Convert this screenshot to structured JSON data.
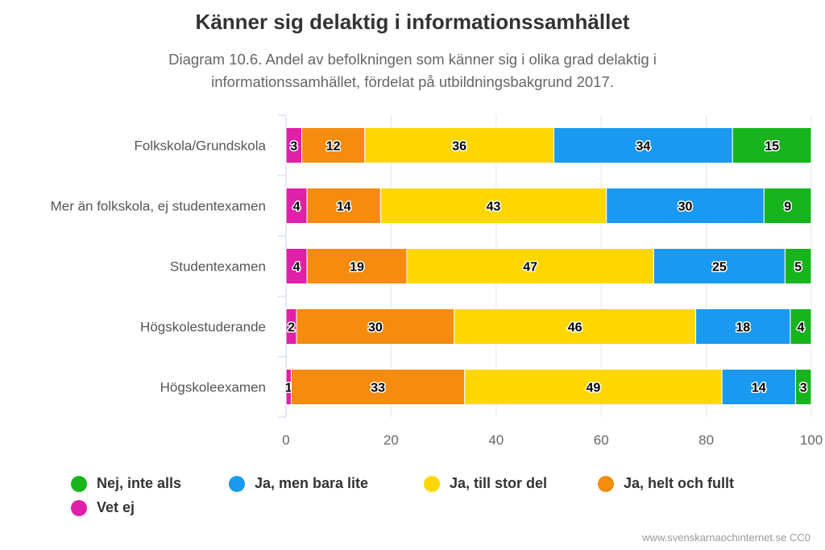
{
  "title": "Känner sig delaktig i informationssamhället",
  "subtitle": "Diagram 10.6. Andel av befolkningen som känner sig i olika grad delaktig i informationssamhället, fördelat på utbildningsbakgrund 2017.",
  "credit": "www.svenskarnaochinternet.se CC0",
  "chart_data": {
    "type": "bar",
    "orientation": "horizontal",
    "stacked": true,
    "title": "Känner sig delaktig i informationssamhället",
    "categories": [
      "Folkskola/Grundskola",
      "Mer än folkskola, ej studentexamen",
      "Studentexamen",
      "Högskolestuderande",
      "Högskoleexamen"
    ],
    "xlim": [
      0,
      100
    ],
    "xticks": [
      "0",
      "20",
      "40",
      "60",
      "80",
      "100"
    ],
    "grid": true,
    "legend_position": "bottom-left",
    "series": [
      {
        "name": "Vet ej",
        "color": "#e020a8",
        "values": [
          3,
          4,
          4,
          2,
          1
        ]
      },
      {
        "name": "Ja, helt och fullt",
        "color": "#f58b0f",
        "values": [
          12,
          14,
          19,
          30,
          33
        ]
      },
      {
        "name": "Ja, till stor del",
        "color": "#ffd700",
        "values": [
          36,
          43,
          47,
          46,
          49
        ]
      },
      {
        "name": "Ja, men bara lite",
        "color": "#1a99f0",
        "values": [
          34,
          30,
          25,
          18,
          14
        ]
      },
      {
        "name": "Nej, inte alls",
        "color": "#18b41e",
        "values": [
          15,
          9,
          5,
          4,
          3
        ]
      }
    ]
  },
  "legend": [
    {
      "label": "Nej, inte alls",
      "color": "#18b41e"
    },
    {
      "label": "Ja, men bara lite",
      "color": "#1a99f0"
    },
    {
      "label": "Ja, till stor del",
      "color": "#ffd700"
    },
    {
      "label": "Ja, helt och fullt",
      "color": "#f58b0f"
    },
    {
      "label": "Vet ej",
      "color": "#e020a8"
    }
  ]
}
